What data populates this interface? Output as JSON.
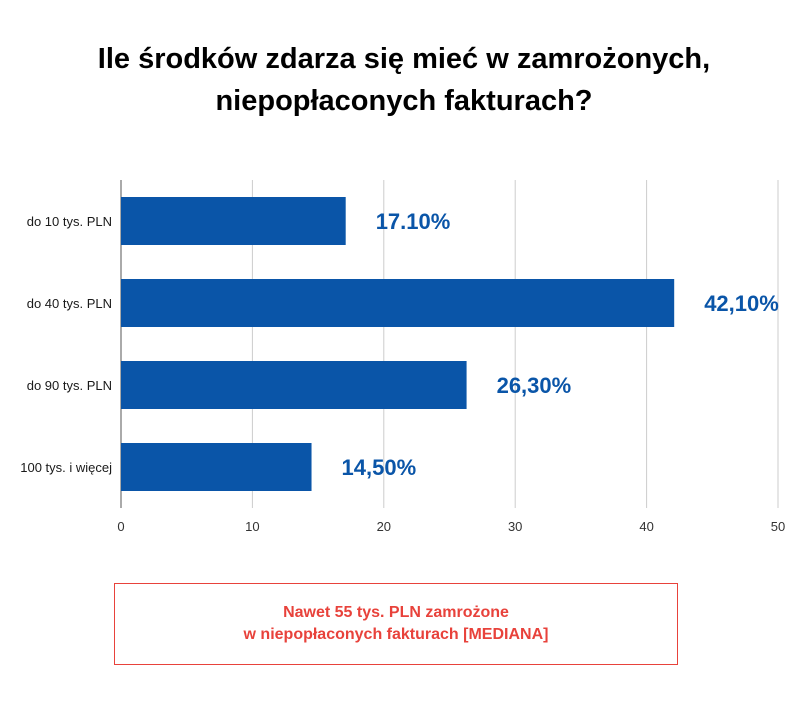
{
  "title": {
    "line1": "Ile środków zdarza się mieć w zamrożonych,",
    "line2": "niepopłaconych fakturach?"
  },
  "chart_data": {
    "type": "bar",
    "orientation": "horizontal",
    "title": "Ile środków zdarza się mieć w zamrożonych, niepopłaconych fakturach?",
    "xlabel": "",
    "ylabel": "",
    "categories": [
      "do 10 tys. PLN",
      "do 40 tys. PLN",
      "do 90 tys. PLN",
      "100 tys. i więcej"
    ],
    "values": [
      17.1,
      42.1,
      26.3,
      14.5
    ],
    "data_labels": [
      "17.10%",
      "42,10%",
      "26,30%",
      "14,50%"
    ],
    "xlim": [
      0,
      50
    ],
    "xticks": [
      "0",
      "10",
      "20",
      "30",
      "40",
      "50"
    ],
    "grid": "vertical",
    "legend": "none"
  },
  "note": {
    "line1": "Nawet 55 tys. PLN zamrożone",
    "line2": "w niepopłaconych fakturach [MEDIANA]"
  },
  "colors": {
    "bar": "#0a55a8",
    "data_label": "#0a55a8",
    "grid": "#cccccc",
    "axis": "#555555",
    "note_text": "#e8423b",
    "note_border": "#e8423b"
  }
}
